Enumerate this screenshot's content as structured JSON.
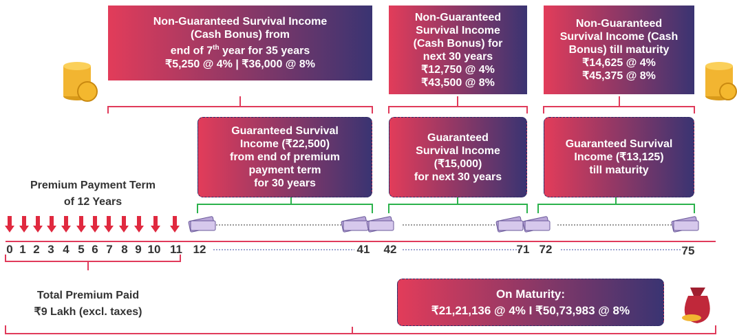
{
  "top_boxes": [
    {
      "lines": [
        "Non-Guaranteed Survival Income",
        "(Cash Bonus) from",
        {
          "before": "end of 7",
          "sup": "th",
          "after": " year for 35 years"
        },
        "₹5,250 @ 4% | ₹36,000 @ 8%"
      ]
    },
    {
      "lines": [
        "Non-Guaranteed",
        "Survival Income",
        "(Cash Bonus) for",
        "next 30 years",
        "₹12,750 @ 4%",
        "₹43,500 @ 8%"
      ]
    },
    {
      "lines": [
        "Non-Guaranteed",
        "Survival Income (Cash",
        "Bonus) till maturity",
        "₹14,625 @ 4%",
        "₹45,375 @ 8%"
      ]
    }
  ],
  "guaranteed_boxes": [
    {
      "lines": [
        "Guaranteed Survival",
        "Income (₹22,500)",
        "from end of premium",
        "payment term",
        "for 30 years"
      ]
    },
    {
      "lines": [
        "Guaranteed",
        "Survival Income",
        "(₹15,000)",
        "for next 30 years"
      ]
    },
    {
      "lines": [
        "Guaranteed Survival",
        "Income (₹13,125)",
        "till maturity"
      ]
    }
  ],
  "premium_term": {
    "lines": [
      "Premium Payment Term",
      "of 12 Years"
    ]
  },
  "timeline": {
    "labels": [
      "0",
      "1",
      "2",
      "3",
      "4",
      "5",
      "6",
      "7",
      "8",
      "9",
      "10",
      "11",
      "12",
      "41",
      "42",
      "71",
      "72",
      "75"
    ]
  },
  "total_premium": {
    "lines": [
      "Total Premium Paid",
      "₹9 Lakh (excl. taxes)"
    ]
  },
  "maturity": {
    "lines": [
      "On Maturity:",
      "₹21,21,136 @ 4%  I  ₹50,73,983 @ 8%"
    ]
  }
}
